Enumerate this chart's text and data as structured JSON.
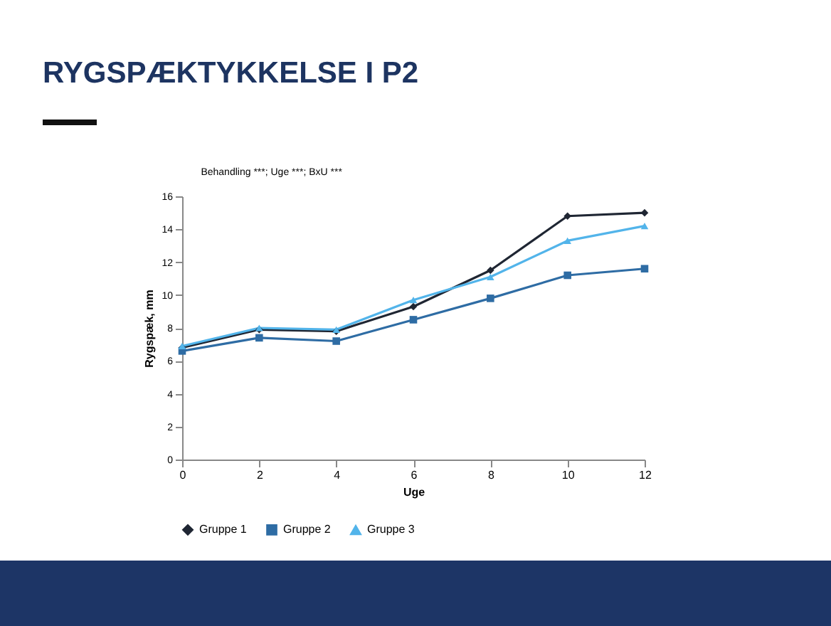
{
  "chart_data": {
    "type": "line",
    "title": "RYGSPÆKTYKKELSE I P2",
    "subtitle": "Behandling ***; Uge ***; BxU ***",
    "xlabel": "Uge",
    "ylabel": "Rygspæk, mm",
    "x": [
      0,
      2,
      4,
      6,
      8,
      10,
      12
    ],
    "series": [
      {
        "name": "Gruppe 1",
        "color": "#1f2633",
        "marker": "diamond",
        "values": [
          6.8,
          7.9,
          7.8,
          9.3,
          11.5,
          14.8,
          15.0
        ]
      },
      {
        "name": "Gruppe 2",
        "color": "#2e6ca4",
        "marker": "square",
        "values": [
          6.6,
          7.4,
          7.2,
          8.5,
          9.8,
          11.2,
          11.6
        ]
      },
      {
        "name": "Gruppe 3",
        "color": "#52b4ea",
        "marker": "triangle",
        "values": [
          6.9,
          8.0,
          7.9,
          9.7,
          11.1,
          13.3,
          14.2
        ]
      }
    ],
    "xlim": [
      0,
      12
    ],
    "xticks": [
      0,
      2,
      4,
      6,
      8,
      10,
      12
    ],
    "ylim": [
      0,
      16
    ],
    "yticks": [
      0,
      2,
      4,
      6,
      8,
      10,
      12,
      14,
      16
    ],
    "grid": false,
    "legend": "bottom",
    "line_style": "solid"
  }
}
